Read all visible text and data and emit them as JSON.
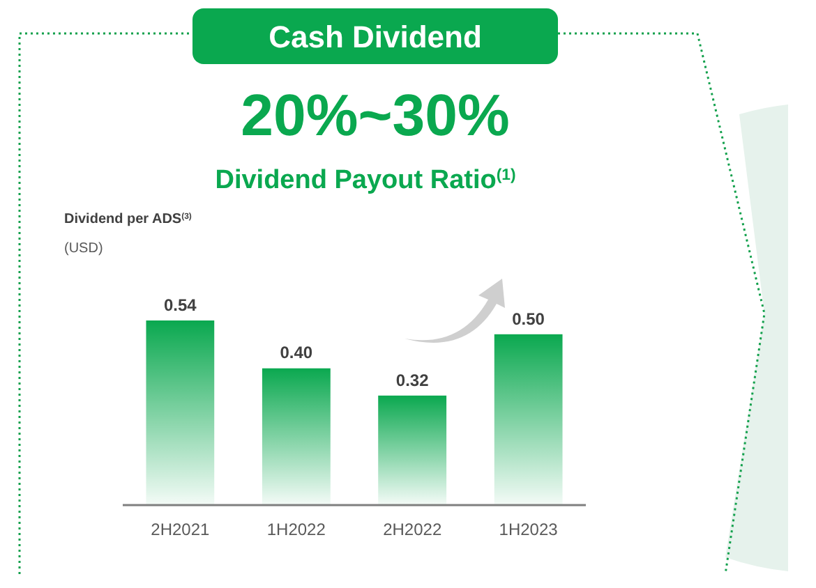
{
  "chart_data": {
    "type": "bar",
    "title": "Cash Dividend",
    "subtitle": "20%~30%",
    "annotations": [
      "Dividend Payout Ratio$^{(1)}$",
      "(USD)",
      "Dividend per ADS$^{(3)}$"
    ],
    "categories": [
      "2H2021",
      "1H2022",
      "2H2022",
      "1H2023"
    ],
    "values": [
      0.54,
      0.4,
      0.32,
      0.5
    ],
    "value_labels": [
      "0.54",
      "0.40",
      "0.32",
      "0.50"
    ],
    "color": "#0aa84f"
  }
}
